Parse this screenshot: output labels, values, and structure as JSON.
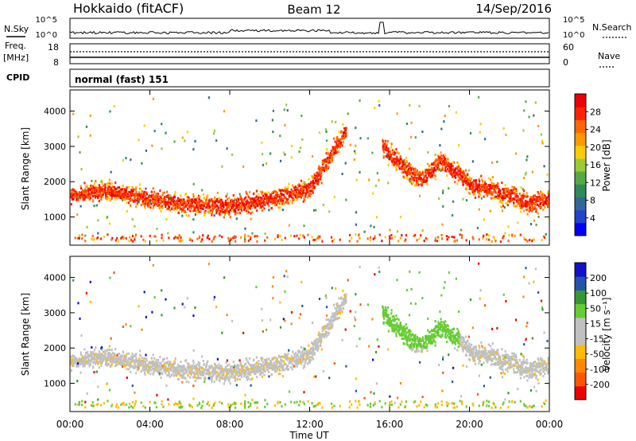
{
  "header": {
    "title": "Hokkaido (fitACF)",
    "beam": "Beam 12",
    "date": "14/Sep/2016"
  },
  "panels": {
    "noise": {
      "label": "N.Sky",
      "right_label": "N.Search",
      "ticks_left": [
        "10^5",
        "10^0"
      ],
      "ticks_right": [
        "10^5",
        "10^0"
      ]
    },
    "freq": {
      "label_line1": "Freq.",
      "label_line2": "[MHz]",
      "ticks_left": [
        "18",
        "8"
      ],
      "ticks_right": [
        "60",
        "0"
      ],
      "right_label": "Nave"
    },
    "cpid": {
      "label": "CPID",
      "text": "normal (fast) 151"
    }
  },
  "chart_data": [
    {
      "type": "heatmap",
      "title": "",
      "ylabel": "Slant Range [km]",
      "xlabel": "",
      "ylim": [
        200,
        4600
      ],
      "yticks": [
        "4000",
        "3000",
        "2000",
        "1000"
      ],
      "xlim": [
        "00:00",
        "24:00"
      ],
      "colorbar": {
        "label": "Power [dB]",
        "ticks": [
          "28",
          "24",
          "20",
          "16",
          "12",
          "8",
          "4"
        ],
        "colors": [
          "#0000ff",
          "#2244cc",
          "#336699",
          "#2e8b57",
          "#55aa44",
          "#99cc33",
          "#ffcc00",
          "#ff9900",
          "#ff6600",
          "#ff2200",
          "#ee0000"
        ]
      },
      "bands": [
        {
          "x": [
            0,
            2,
            4,
            6,
            8,
            10,
            12,
            13.8
          ],
          "y": [
            1600,
            1750,
            1500,
            1350,
            1300,
            1500,
            1800,
            3500
          ],
          "level": "high"
        },
        {
          "x": [
            15.6,
            16.5,
            17.5,
            18.5,
            20,
            21.5,
            23,
            24
          ],
          "y": [
            3000,
            2500,
            2000,
            2600,
            1900,
            1700,
            1350,
            1500
          ],
          "level": "high"
        }
      ]
    },
    {
      "type": "heatmap",
      "title": "",
      "ylabel": "Slant Range [km]",
      "xlabel": "Time UT",
      "ylim": [
        200,
        4600
      ],
      "yticks": [
        "4000",
        "3000",
        "2000",
        "1000"
      ],
      "xticks": [
        "00:00",
        "04:00",
        "08:00",
        "12:00",
        "16:00",
        "20:00",
        "00:00"
      ],
      "colorbar": {
        "label": "Velocity [m s⁻¹]",
        "ticks": [
          "200",
          "100",
          "50",
          "15",
          "-15",
          "-50",
          "-100",
          "-200"
        ],
        "colors": [
          "#ee0000",
          "#ff5500",
          "#ff8800",
          "#ffbb00",
          "#c0c0c0",
          "#c0c0c0",
          "#66cc33",
          "#339933",
          "#2255aa",
          "#1111cc"
        ]
      }
    }
  ]
}
